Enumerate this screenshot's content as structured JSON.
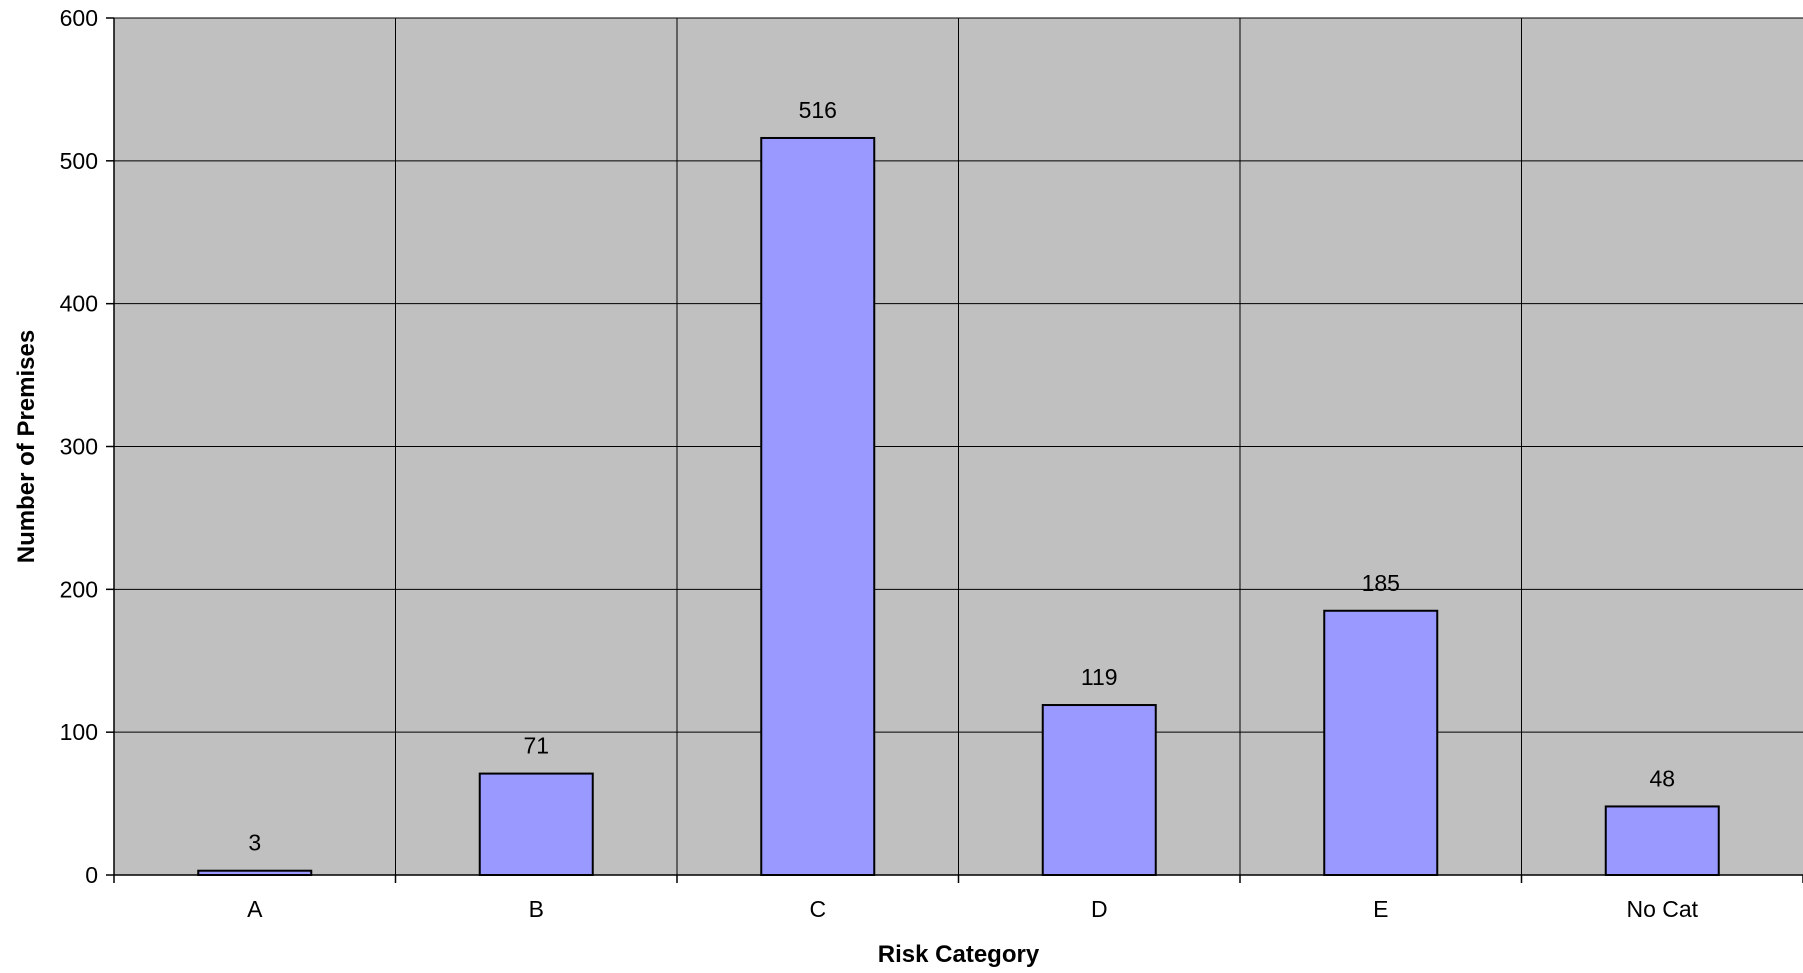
{
  "chart_data": {
    "type": "bar",
    "title": "",
    "xlabel": "Risk Category",
    "ylabel": "Number of Premises",
    "categories": [
      "A",
      "B",
      "C",
      "D",
      "E",
      "No Cat"
    ],
    "values": [
      3,
      71,
      516,
      119,
      185,
      48
    ],
    "data_labels": [
      "3",
      "71",
      "516",
      "119",
      "185",
      "48"
    ],
    "ylim": [
      0,
      600
    ],
    "yticks": [
      0,
      100,
      200,
      300,
      400,
      500,
      600
    ],
    "ytick_labels": [
      "0",
      "100",
      "200",
      "300",
      "400",
      "500",
      "600"
    ],
    "grid": true,
    "legend": "none",
    "colors": {
      "plot_background": "#c0c0c0",
      "bar_fill": "#9999ff",
      "bar_stroke": "#000000",
      "grid": "#000000"
    }
  }
}
